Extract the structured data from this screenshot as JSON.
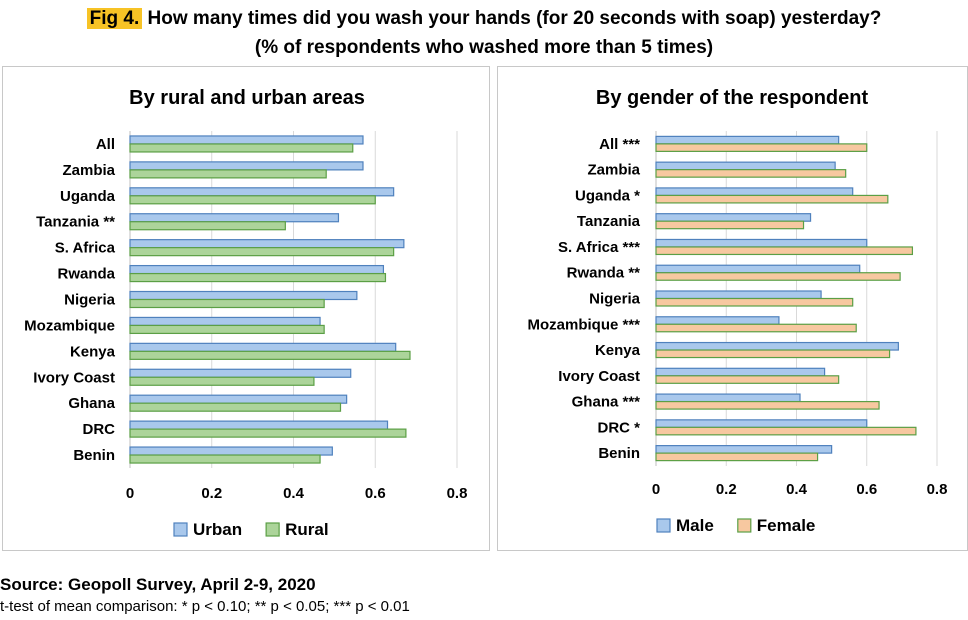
{
  "header": {
    "fig_label": "Fig 4.",
    "title_line1": "How many times did you wash your hands (for 20 seconds with soap) yesterday?",
    "title_line2": "(% of respondents who washed more than 5 times)"
  },
  "footer": {
    "source": "Source: Geopoll Survey, April 2-9, 2020",
    "note": "t-test of mean comparison: * p < 0.10; ** p < 0.05; *** p < 0.01"
  },
  "chart_data": [
    {
      "type": "bar",
      "orientation": "horizontal",
      "title": "By rural and urban areas",
      "categories": [
        "All",
        "Zambia",
        "Uganda",
        "Tanzania **",
        "S. Africa",
        "Rwanda",
        "Nigeria",
        "Mozambique",
        "Kenya",
        "Ivory Coast",
        "Ghana",
        "DRC",
        "Benin"
      ],
      "series": [
        {
          "name": "Urban",
          "color": "#a9c8ec",
          "stroke": "#4f81bd",
          "values": [
            0.57,
            0.57,
            0.645,
            0.51,
            0.67,
            0.62,
            0.555,
            0.465,
            0.65,
            0.54,
            0.53,
            0.63,
            0.495
          ]
        },
        {
          "name": "Rural",
          "color": "#acd49a",
          "stroke": "#5b9f45",
          "values": [
            0.545,
            0.48,
            0.6,
            0.38,
            0.645,
            0.625,
            0.475,
            0.475,
            0.685,
            0.45,
            0.515,
            0.675,
            0.465
          ]
        }
      ],
      "xlim": [
        0,
        0.8
      ],
      "xticks": [
        "0",
        "0.2",
        "0.4",
        "0.6",
        "0.8"
      ],
      "grid": true,
      "legend": "bottom"
    },
    {
      "type": "bar",
      "orientation": "horizontal",
      "title": "By gender of the respondent",
      "categories": [
        "All ***",
        "Zambia",
        "Uganda *",
        "Tanzania",
        "S. Africa ***",
        "Rwanda **",
        "Nigeria",
        "Mozambique ***",
        "Kenya",
        "Ivory Coast",
        "Ghana ***",
        "DRC *",
        "Benin"
      ],
      "series": [
        {
          "name": "Male",
          "color": "#a9c8ec",
          "stroke": "#4f81bd",
          "values": [
            0.52,
            0.51,
            0.56,
            0.44,
            0.6,
            0.58,
            0.47,
            0.35,
            0.69,
            0.48,
            0.41,
            0.6,
            0.5
          ]
        },
        {
          "name": "Female",
          "color": "#f7c8a0",
          "stroke": "#5b9f45",
          "values": [
            0.6,
            0.54,
            0.66,
            0.42,
            0.73,
            0.695,
            0.56,
            0.57,
            0.665,
            0.52,
            0.635,
            0.74,
            0.46
          ]
        }
      ],
      "xlim": [
        0,
        0.8
      ],
      "xticks": [
        "0",
        "0.2",
        "0.4",
        "0.6",
        "0.8"
      ],
      "grid": true,
      "legend": "bottom"
    }
  ]
}
